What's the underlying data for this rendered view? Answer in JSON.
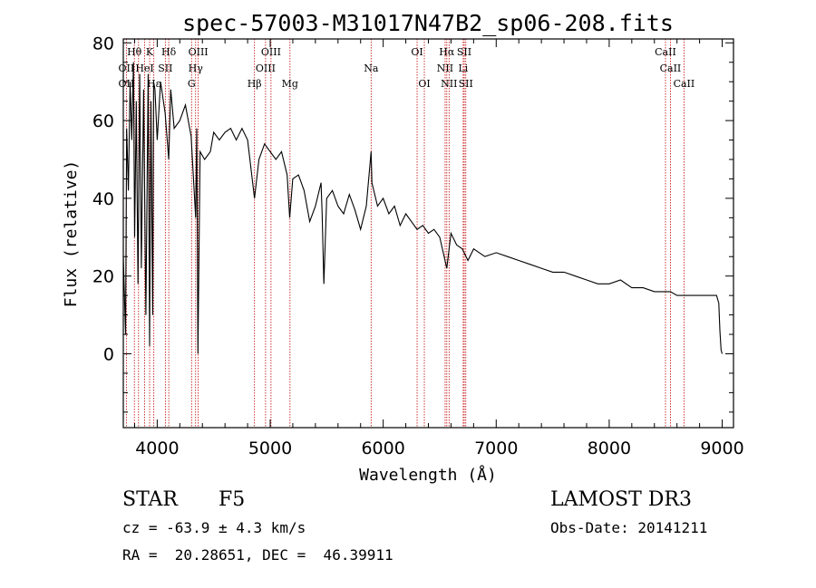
{
  "chart_data": {
    "type": "line",
    "title": "spec-57003-M31017N47B2_sp06-208.fits",
    "xlabel": "Wavelength (Å)",
    "ylabel": "Flux (relative)",
    "xlim": [
      3700,
      9100
    ],
    "ylim": [
      -19,
      81
    ],
    "xticks": [
      4000,
      5000,
      6000,
      7000,
      8000,
      9000
    ],
    "yticks": [
      0,
      20,
      40,
      60,
      80
    ],
    "series": [
      {
        "name": "spectrum",
        "x": [
          3700,
          3720,
          3730,
          3745,
          3760,
          3775,
          3790,
          3800,
          3815,
          3830,
          3845,
          3860,
          3880,
          3900,
          3920,
          3933,
          3945,
          3960,
          3968,
          3980,
          4000,
          4030,
          4070,
          4102,
          4120,
          4150,
          4200,
          4250,
          4300,
          4340,
          4350,
          4360,
          4380,
          4420,
          4470,
          4500,
          4550,
          4600,
          4650,
          4700,
          4750,
          4800,
          4861,
          4900,
          4950,
          5000,
          5050,
          5100,
          5150,
          5172,
          5200,
          5250,
          5300,
          5350,
          5400,
          5450,
          5460,
          5475,
          5500,
          5550,
          5600,
          5650,
          5700,
          5750,
          5800,
          5850,
          5893,
          5900,
          5950,
          6000,
          6050,
          6100,
          6150,
          6200,
          6250,
          6300,
          6350,
          6400,
          6450,
          6500,
          6563,
          6600,
          6650,
          6700,
          6750,
          6800,
          6900,
          7000,
          7100,
          7200,
          7300,
          7400,
          7500,
          7600,
          7700,
          7800,
          7900,
          8000,
          8100,
          8200,
          8300,
          8400,
          8500,
          8542,
          8600,
          8662,
          8700,
          8800,
          8900,
          8950,
          8970,
          8980,
          8990,
          9000
        ],
        "values": [
          25,
          5,
          58,
          42,
          70,
          55,
          75,
          30,
          65,
          18,
          72,
          22,
          68,
          10,
          72,
          2,
          65,
          10,
          70,
          68,
          55,
          70,
          62,
          50,
          68,
          58,
          60,
          64,
          56,
          35,
          58,
          0,
          52,
          50,
          52,
          57,
          55,
          57,
          58,
          55,
          58,
          55,
          40,
          50,
          54,
          52,
          50,
          52,
          46,
          35,
          45,
          46,
          42,
          34,
          38,
          44,
          36,
          18,
          40,
          42,
          38,
          36,
          41,
          37,
          32,
          38,
          52,
          44,
          38,
          40,
          36,
          38,
          33,
          36,
          34,
          32,
          33,
          31,
          32,
          30,
          22,
          31,
          28,
          27,
          24,
          27,
          25,
          26,
          25,
          24,
          23,
          22,
          21,
          21,
          20,
          19,
          18,
          18,
          19,
          17,
          17,
          16,
          16,
          16,
          15,
          15,
          15,
          15,
          15,
          15,
          13,
          6,
          1,
          0
        ]
      }
    ],
    "line_labels": [
      {
        "label": "Hθ",
        "wave": 3798,
        "row": 0
      },
      {
        "label": "K",
        "wave": 3933,
        "row": 0
      },
      {
        "label": "Hδ",
        "wave": 4102,
        "row": 0
      },
      {
        "label": "OIII",
        "wave": 4363,
        "row": 0
      },
      {
        "label": "OIII",
        "wave": 5007,
        "row": 0
      },
      {
        "label": "OI",
        "wave": 6300,
        "row": 0
      },
      {
        "label": "Hα",
        "wave": 6563,
        "row": 0
      },
      {
        "label": "SII",
        "wave": 6717,
        "row": 0
      },
      {
        "label": "CaII",
        "wave": 8498,
        "row": 0
      },
      {
        "label": "OII",
        "wave": 3727,
        "row": 1
      },
      {
        "label": "HeI",
        "wave": 3889,
        "row": 1
      },
      {
        "label": "SII",
        "wave": 4072,
        "row": 1
      },
      {
        "label": "Hγ",
        "wave": 4340,
        "row": 1
      },
      {
        "label": "OIII",
        "wave": 4959,
        "row": 1
      },
      {
        "label": "Na",
        "wave": 5893,
        "row": 1
      },
      {
        "label": "NII",
        "wave": 6548,
        "row": 1
      },
      {
        "label": "Li",
        "wave": 6708,
        "row": 1
      },
      {
        "label": "CaII",
        "wave": 8542,
        "row": 1
      },
      {
        "label": "OII",
        "wave": 3727,
        "row": 2
      },
      {
        "label": "Hε",
        "wave": 3970,
        "row": 2
      },
      {
        "label": "G",
        "wave": 4304,
        "row": 2
      },
      {
        "label": "Hβ",
        "wave": 4861,
        "row": 2
      },
      {
        "label": "Mg",
        "wave": 5175,
        "row": 2
      },
      {
        "label": "OI",
        "wave": 6364,
        "row": 2
      },
      {
        "label": "NII",
        "wave": 6583,
        "row": 2
      },
      {
        "label": "SII",
        "wave": 6731,
        "row": 2
      },
      {
        "label": "CaII",
        "wave": 8662,
        "row": 2
      }
    ],
    "line_markers": [
      3727,
      3798,
      3835,
      3889,
      3933,
      3970,
      4072,
      4102,
      4304,
      4340,
      4363,
      4861,
      4959,
      5007,
      5175,
      5893,
      6300,
      6364,
      6548,
      6563,
      6583,
      6708,
      6717,
      6731,
      8498,
      8542,
      8662
    ]
  },
  "info": {
    "class": "STAR",
    "subclass": "F5",
    "cz": "cz = -63.9 ± 4.3 km/s",
    "coords": "RA =  20.28651, DEC =  46.39911",
    "survey": "LAMOST DR3",
    "obs_date": "Obs-Date: 20141211"
  },
  "colors": {
    "line_marker": "#c00000",
    "ink": "#000000"
  }
}
